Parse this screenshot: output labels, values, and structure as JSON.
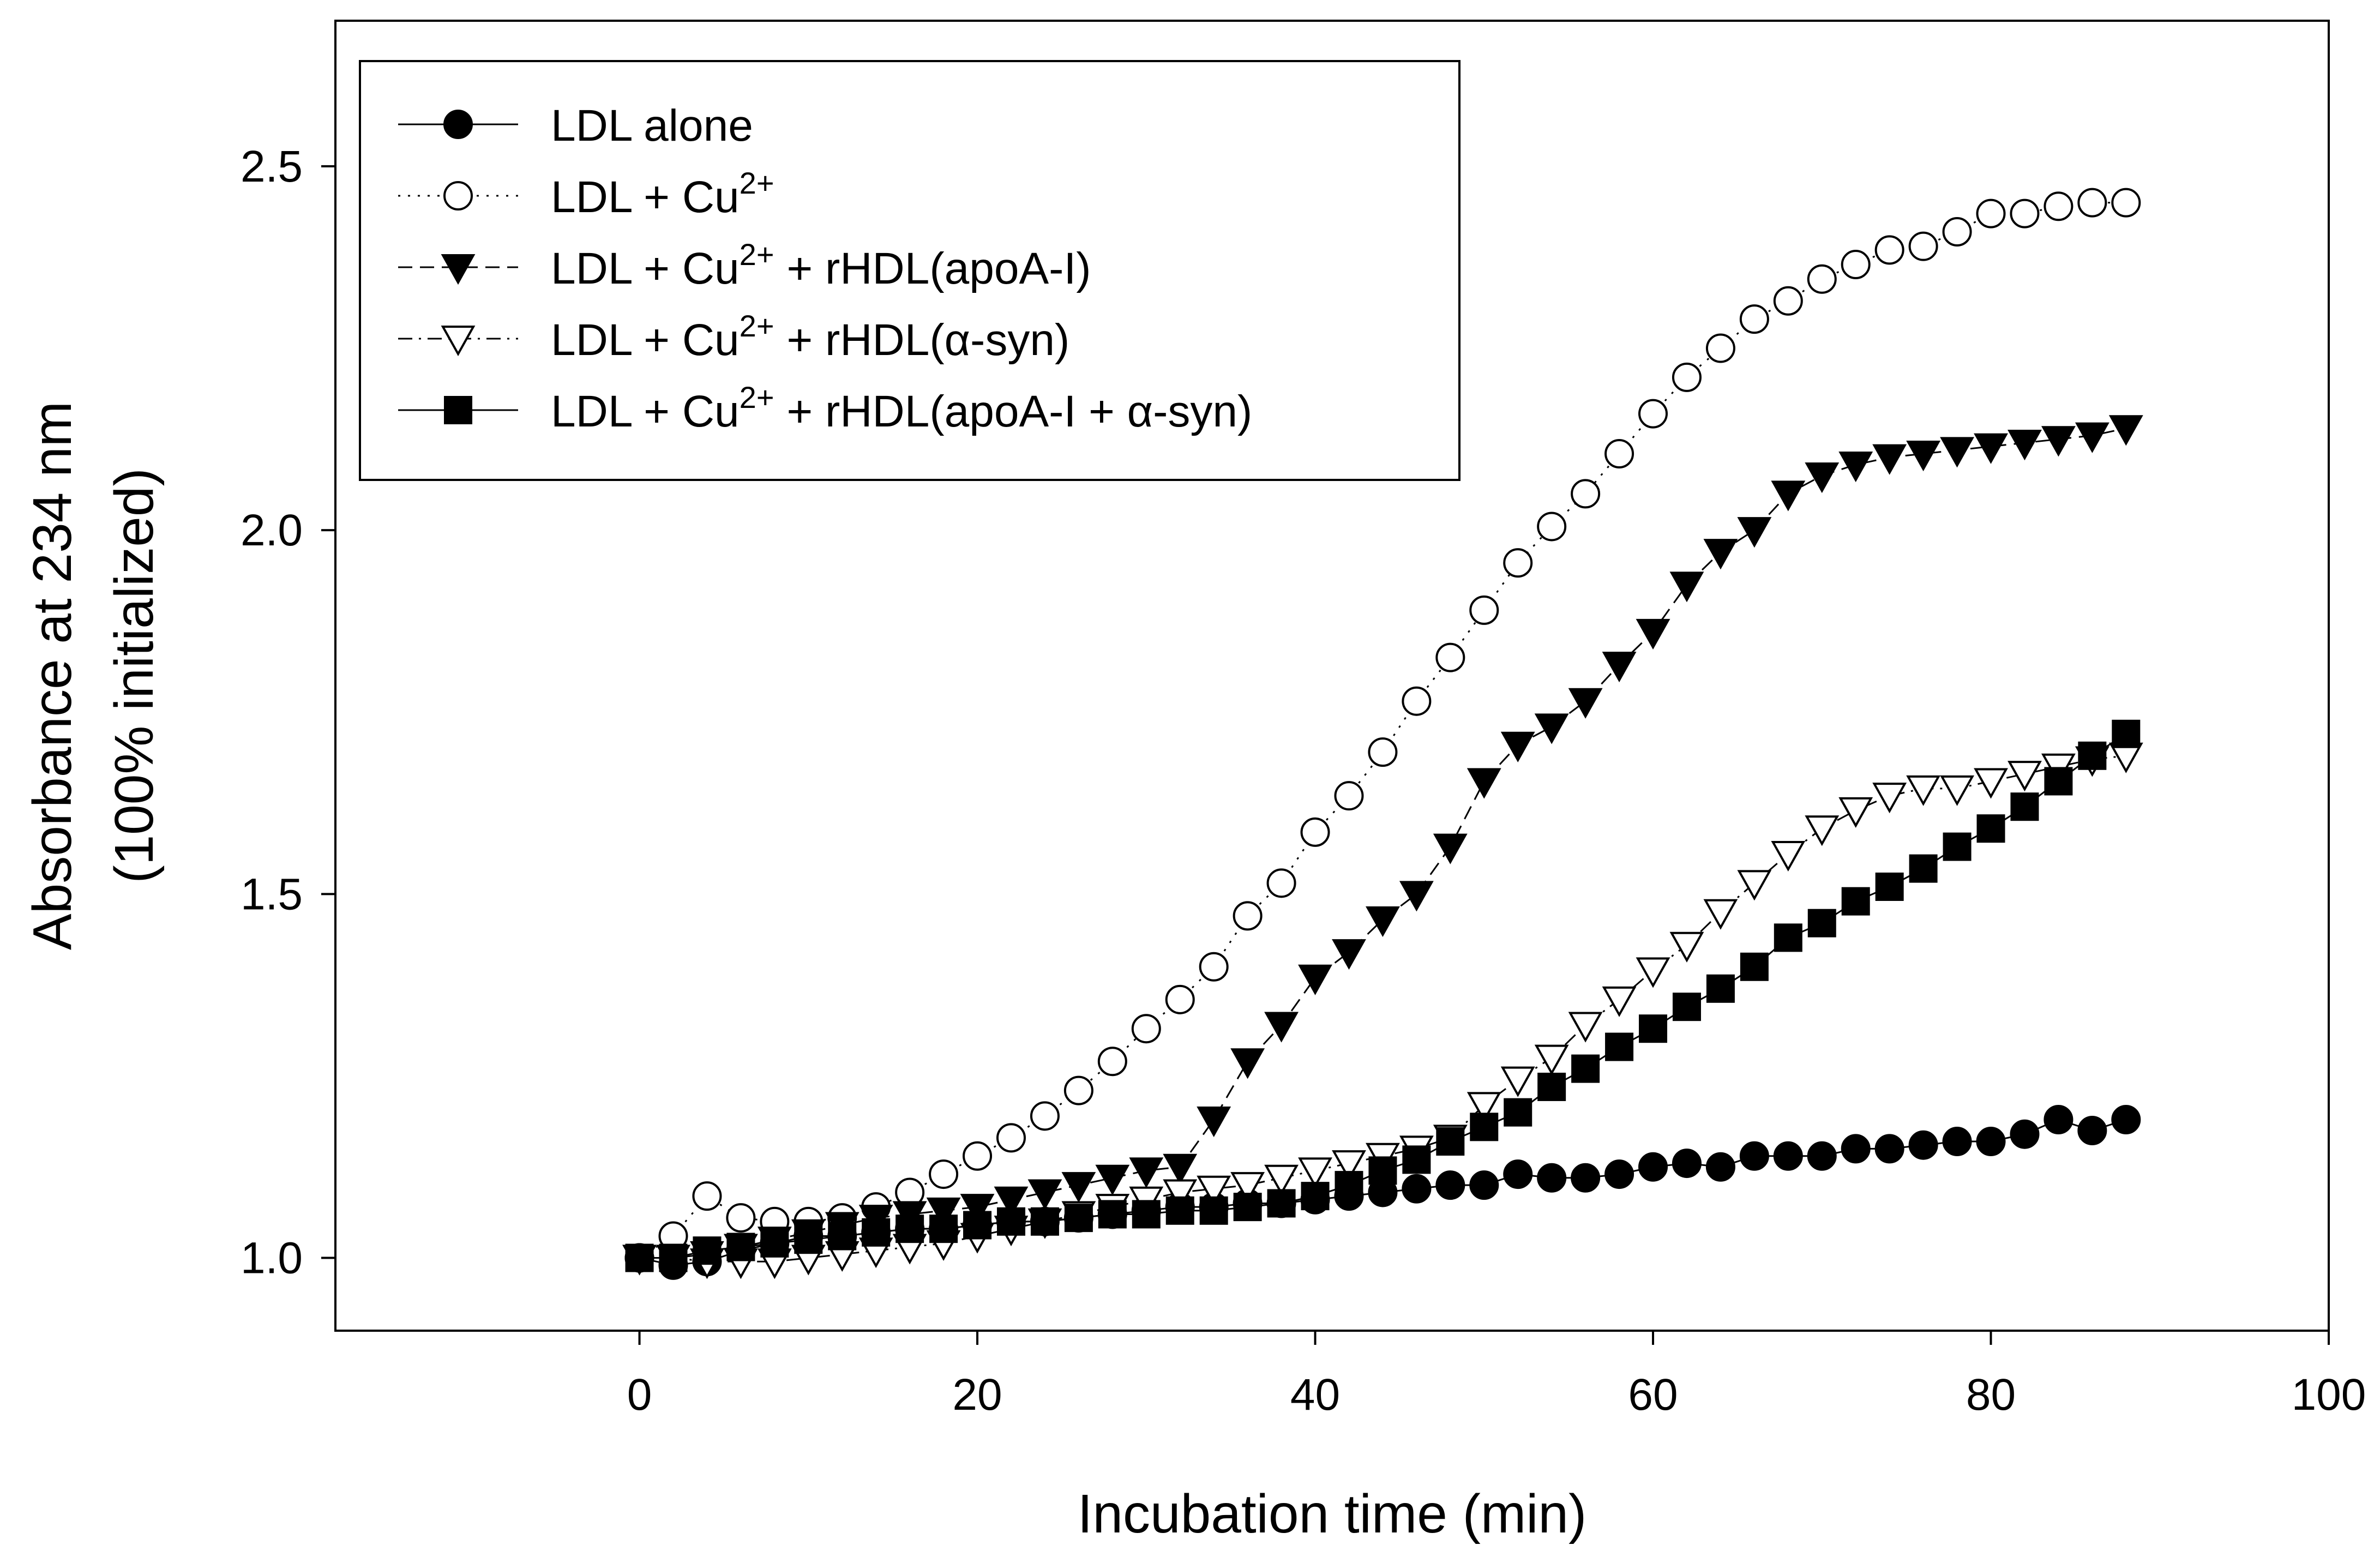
{
  "chart_data": {
    "type": "scatter",
    "title": "",
    "xlabel": "Incubation time (min)",
    "ylabel": [
      "Absorbance at 234 nm",
      "(100% initialized)"
    ],
    "xlim": [
      -18,
      100
    ],
    "ylim": [
      0.9,
      2.7
    ],
    "xticks": [
      0,
      20,
      40,
      60,
      80,
      100
    ],
    "yticks": [
      1.0,
      1.5,
      2.0,
      2.5
    ],
    "xtick_labels": [
      "0",
      "20",
      "40",
      "60",
      "80",
      "100"
    ],
    "ytick_labels": [
      "1.0",
      "1.5",
      "2.0",
      "2.5"
    ],
    "grid": false,
    "legend_position": "top-left",
    "x": [
      0,
      2,
      4,
      6,
      8,
      10,
      12,
      14,
      16,
      18,
      20,
      22,
      24,
      26,
      28,
      30,
      32,
      34,
      36,
      38,
      40,
      42,
      44,
      46,
      48,
      50,
      52,
      54,
      56,
      58,
      60,
      62,
      64,
      66,
      68,
      70,
      72,
      74,
      76,
      78,
      80,
      82,
      84,
      86,
      88
    ],
    "series": [
      {
        "name_main": "LDL alone",
        "name_sup": "",
        "name_tail": "",
        "marker": "circle",
        "filled": true,
        "line": "solid",
        "values": [
          1.0,
          0.99,
          0.995,
          1.01,
          1.02,
          1.03,
          1.03,
          1.035,
          1.04,
          1.04,
          1.045,
          1.05,
          1.05,
          1.055,
          1.06,
          1.065,
          1.07,
          1.07,
          1.075,
          1.075,
          1.08,
          1.085,
          1.09,
          1.095,
          1.1,
          1.1,
          1.115,
          1.11,
          1.11,
          1.115,
          1.125,
          1.13,
          1.125,
          1.14,
          1.14,
          1.14,
          1.15,
          1.15,
          1.155,
          1.16,
          1.16,
          1.17,
          1.19,
          1.175,
          1.19
        ]
      },
      {
        "name_main": "LDL + Cu",
        "name_sup": "2+",
        "name_tail": "",
        "marker": "circle",
        "filled": false,
        "line": "dotted",
        "values": [
          1.0,
          1.03,
          1.085,
          1.055,
          1.05,
          1.05,
          1.055,
          1.07,
          1.09,
          1.115,
          1.14,
          1.165,
          1.195,
          1.23,
          1.27,
          1.315,
          1.355,
          1.4,
          1.47,
          1.515,
          1.585,
          1.635,
          1.695,
          1.765,
          1.825,
          1.89,
          1.955,
          2.005,
          2.05,
          2.105,
          2.16,
          2.21,
          2.25,
          2.29,
          2.315,
          2.345,
          2.365,
          2.385,
          2.39,
          2.41,
          2.435,
          2.435,
          2.445,
          2.45,
          2.45
        ]
      },
      {
        "name_main": "LDL + Cu",
        "name_sup": "2+",
        "name_tail": " + rHDL(apoA-I)",
        "marker": "triangle-down",
        "filled": true,
        "line": "dashed",
        "values": [
          1.0,
          1.0,
          1.005,
          1.015,
          1.025,
          1.035,
          1.045,
          1.055,
          1.06,
          1.065,
          1.07,
          1.08,
          1.09,
          1.1,
          1.11,
          1.12,
          1.125,
          1.19,
          1.27,
          1.32,
          1.385,
          1.42,
          1.465,
          1.5,
          1.565,
          1.655,
          1.705,
          1.73,
          1.765,
          1.815,
          1.86,
          1.925,
          1.97,
          2.0,
          2.05,
          2.075,
          2.09,
          2.1,
          2.105,
          2.11,
          2.115,
          2.12,
          2.125,
          2.13,
          2.14
        ]
      },
      {
        "name_main": "LDL + Cu",
        "name_sup": "2+",
        "name_tail": " + rHDL(α-syn)",
        "marker": "triangle-down",
        "filled": false,
        "line": "dashdot",
        "values": [
          1.0,
          1.0,
          0.995,
          0.995,
          0.995,
          1.0,
          1.005,
          1.01,
          1.015,
          1.02,
          1.03,
          1.04,
          1.05,
          1.06,
          1.07,
          1.08,
          1.09,
          1.095,
          1.1,
          1.11,
          1.12,
          1.13,
          1.14,
          1.15,
          1.165,
          1.21,
          1.245,
          1.275,
          1.32,
          1.355,
          1.395,
          1.43,
          1.475,
          1.515,
          1.555,
          1.59,
          1.615,
          1.635,
          1.645,
          1.645,
          1.655,
          1.665,
          1.675,
          1.685,
          1.69
        ]
      },
      {
        "name_main": "LDL + Cu",
        "name_sup": "2+",
        "name_tail": " + rHDL(apoA-I + α-syn)",
        "marker": "square",
        "filled": true,
        "line": "solid",
        "values": [
          1.0,
          1.0,
          1.01,
          1.015,
          1.02,
          1.025,
          1.03,
          1.035,
          1.04,
          1.04,
          1.045,
          1.05,
          1.05,
          1.055,
          1.06,
          1.06,
          1.065,
          1.065,
          1.07,
          1.075,
          1.085,
          1.1,
          1.12,
          1.135,
          1.16,
          1.18,
          1.2,
          1.235,
          1.26,
          1.29,
          1.315,
          1.345,
          1.37,
          1.4,
          1.44,
          1.46,
          1.49,
          1.51,
          1.535,
          1.565,
          1.59,
          1.62,
          1.655,
          1.69,
          1.72
        ]
      }
    ]
  }
}
